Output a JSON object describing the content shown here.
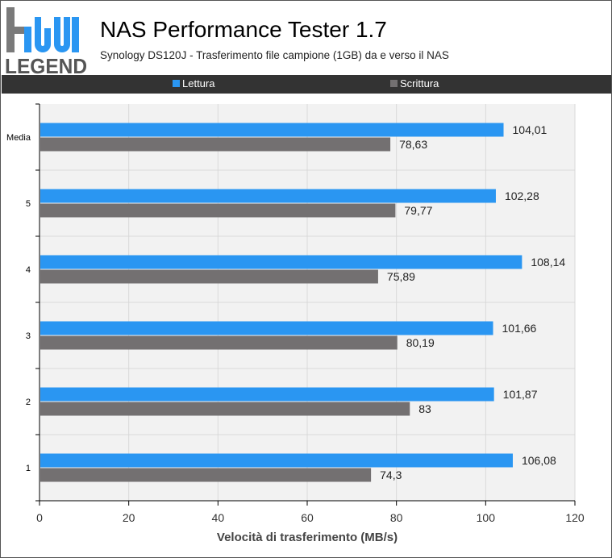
{
  "header": {
    "logo_text": "LEGEND",
    "title": "NAS Performance Tester 1.7",
    "subtitle": "Synology DS120J - Trasferimento file campione (1GB) da e verso il NAS"
  },
  "colors": {
    "lettura": "#2a96f2",
    "scrittura": "#737071",
    "header_bar": "#333333",
    "plot_bg": "#f2f2f2",
    "grid": "#d9d9d9"
  },
  "chart_data": {
    "type": "bar",
    "orientation": "horizontal",
    "categories": [
      "Media",
      "5",
      "4",
      "3",
      "2",
      "1"
    ],
    "series": [
      {
        "name": "Lettura",
        "values": [
          104.01,
          102.28,
          108.14,
          101.66,
          101.87,
          106.08
        ],
        "labels": [
          "104,01",
          "102,28",
          "108,14",
          "101,66",
          "101,87",
          "106,08"
        ]
      },
      {
        "name": "Scrittura",
        "values": [
          78.63,
          79.77,
          75.89,
          80.19,
          83,
          74.3
        ],
        "labels": [
          "78,63",
          "79,77",
          "75,89",
          "80,19",
          "83",
          "74,3"
        ]
      }
    ],
    "xlabel": "Velocità di trasferimento (MB/s)",
    "xlim": [
      0,
      120
    ],
    "xticks": [
      0,
      20,
      40,
      60,
      80,
      100,
      120
    ],
    "grid": true,
    "legend_position": "top"
  }
}
